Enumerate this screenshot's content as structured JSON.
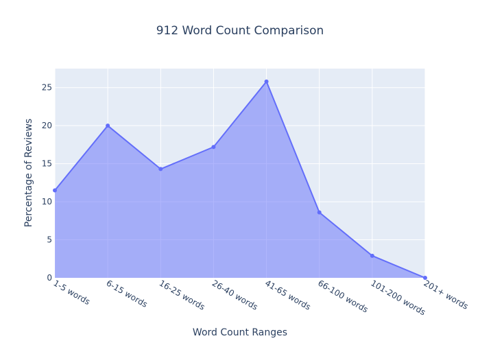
{
  "chart_data": {
    "type": "area",
    "title": "912 Word Count Comparison",
    "xlabel": "Word Count Ranges",
    "ylabel": "Percentage of Reviews",
    "categories": [
      "1-5 words",
      "6-15 words",
      "16-25 words",
      "26-40 words",
      "41-65 words",
      "66-100 words",
      "101-200 words",
      "201+ words"
    ],
    "values": [
      11.5,
      20.0,
      14.3,
      17.2,
      25.8,
      8.6,
      2.9,
      0.0
    ],
    "ylim": [
      0,
      27.5
    ],
    "yticks": [
      0,
      5,
      10,
      15,
      20,
      25
    ],
    "grid": true,
    "colors": {
      "line": "#636efa",
      "fill": "rgba(99,110,250,0.5)",
      "plot_bg": "#e5ecf6",
      "grid": "#ffffff",
      "text": "#2a3f5f"
    }
  }
}
